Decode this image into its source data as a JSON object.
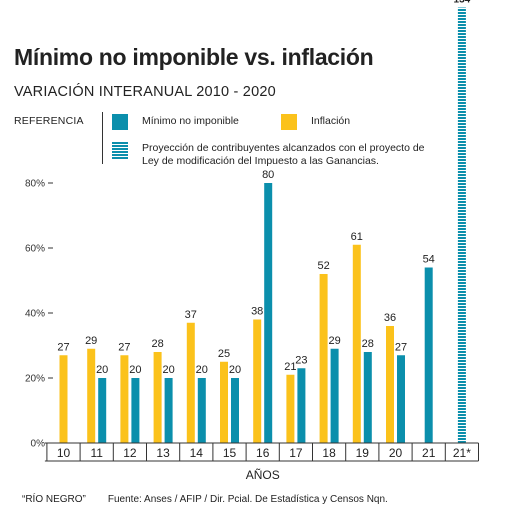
{
  "header": {
    "title": "Mínimo no imponible vs. inflación",
    "subtitle": "VARIACIÓN INTERANUAL 2010 - 2020"
  },
  "legend": {
    "reference_label": "REFERENCIA",
    "items": [
      {
        "label": "Mínimo no imponible",
        "color": "#0b8fac"
      },
      {
        "label": "Inflación",
        "color": "#fbc21b"
      },
      {
        "label": "Proyección de contribuyentes alcanzados con el proyecto de Ley de modificación del Impuesto a las Ganancias.",
        "color": "#0b8fac",
        "pattern": "striped"
      }
    ]
  },
  "footer": {
    "credit": "“RÍO NEGRO”",
    "source": "Fuente: Anses / AFIP / Dir. Pcial. De Estadística y Censos Nqn."
  },
  "chart_data": {
    "type": "bar",
    "title": "Mínimo no imponible vs. inflación",
    "subtitle": "VARIACIÓN INTERANUAL 2010 - 2020",
    "xlabel": "AÑOS",
    "ylabel": "",
    "categories": [
      "10",
      "11",
      "12",
      "13",
      "14",
      "15",
      "16",
      "17",
      "18",
      "19",
      "20",
      "21",
      "21*"
    ],
    "yticks": [
      "0%",
      "20%",
      "40%",
      "60%",
      "80%"
    ],
    "ylim": [
      0,
      134
    ],
    "grid": false,
    "legend_position": "top",
    "series": [
      {
        "name": "Mínimo no imponible",
        "color": "#0b8fac",
        "values": [
          null,
          20,
          20,
          20,
          20,
          20,
          80,
          23,
          29,
          28,
          27,
          54,
          null
        ]
      },
      {
        "name": "Inflación",
        "color": "#fbc21b",
        "values": [
          27,
          29,
          27,
          28,
          37,
          25,
          38,
          21,
          52,
          61,
          36,
          null,
          null
        ]
      },
      {
        "name": "Proyección de contribuyentes alcanzados con el proyecto de Ley de modificación del Impuesto a las Ganancias.",
        "color": "#0b8fac",
        "pattern": "striped",
        "values": [
          null,
          null,
          null,
          null,
          null,
          null,
          null,
          null,
          null,
          null,
          null,
          null,
          134
        ]
      }
    ]
  }
}
